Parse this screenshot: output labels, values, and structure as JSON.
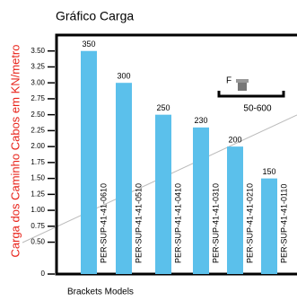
{
  "chart_data": {
    "type": "bar",
    "title": "Gráfico Carga",
    "y_label": "Carga dos Caminho Cabos em KN/metro",
    "x_label": "Brackets Models",
    "categories": [
      "PER-SUP-41-41-0610",
      "PER-SUP-41-41-0510",
      "PER-SUP-41-41-0410",
      "PER-SUP-41-41-0310",
      "PER-SUP-41-41-0210",
      "PER-SUP-41-41-0110"
    ],
    "values": [
      3.5,
      3.0,
      2.5,
      2.3,
      2.0,
      1.5
    ],
    "value_labels": [
      "350",
      "300",
      "250",
      "230",
      "200",
      "150"
    ],
    "color": "#5bc0eb",
    "ylim": [
      0,
      3.75
    ],
    "yticks": [
      0,
      {
        "value": 0.5,
        "label": "0.50"
      },
      {
        "value": 0.75,
        "label": "0.75"
      },
      {
        "value": 1,
        "label": "1.00"
      },
      1.25,
      {
        "value": 1.5,
        "label": "1.50"
      },
      1.75,
      {
        "value": 2,
        "label": "2.00"
      },
      2.25,
      {
        "value": 2.5,
        "label": "2.50"
      },
      2.75,
      {
        "value": 3,
        "label": "3.00"
      },
      3.25,
      {
        "value": 3.5,
        "label": "3.50"
      }
    ],
    "inset": {
      "force": "F",
      "range": "50-600"
    }
  }
}
